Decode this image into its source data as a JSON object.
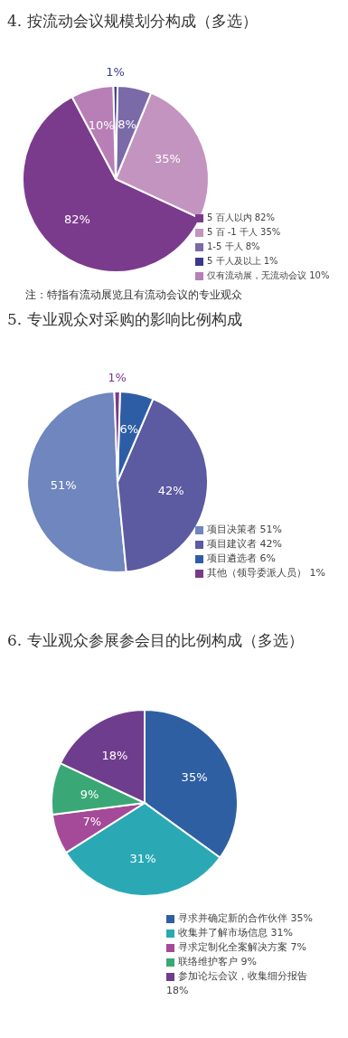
{
  "chart_data": [
    {
      "type": "pie",
      "title": "4. 按流动会议规模划分构成（多选）",
      "categories": [
        "5 百人以内 82%",
        "5 百 -1 千人 35%",
        "1-5 千人 8%",
        "5 千人及以上 1%",
        "仅有流动展，无流动会议 10%"
      ],
      "values": [
        82,
        35,
        8,
        1,
        10
      ],
      "value_labels": [
        "82%",
        "35%",
        "8%",
        "1%",
        "10%"
      ],
      "colors": [
        "#7b3b8c",
        "#c394c0",
        "#7a6aa8",
        "#3a3a8a",
        "#b77fb5"
      ],
      "legend": "bottom right",
      "annotations": [
        "注：特指有流动展览且有流动会议的专业观众"
      ]
    },
    {
      "type": "pie",
      "title": "5. 专业观众对采购的影响比例构成",
      "categories": [
        "项目决策者 51%",
        "项目建议者 42%",
        "项目遴选者 6%",
        "其他（领导委派人员） 1%"
      ],
      "values": [
        51,
        42,
        6,
        1
      ],
      "value_labels": [
        "51%",
        "42%",
        "6%",
        "1%"
      ],
      "colors": [
        "#6f86bf",
        "#5c5aa0",
        "#2d5ea5",
        "#7a3a8a"
      ],
      "legend": "bottom right"
    },
    {
      "type": "pie",
      "title": "6. 专业观众参展参会目的比例构成（多选）",
      "categories": [
        "寻求并确定新的合作伙伴 35%",
        "收集并了解市场信息 31%",
        "寻求定制化全案解决方案 7%",
        "联络维护客户 9%",
        "参加论坛会议，收集细分报告 18%"
      ],
      "values": [
        35,
        31,
        7,
        9,
        18
      ],
      "value_labels": [
        "35%",
        "31%",
        "7%",
        "9%",
        "18%"
      ],
      "colors": [
        "#2f5fa3",
        "#2aa9b5",
        "#a54a98",
        "#3aa876",
        "#6f3d8e"
      ],
      "legend": "bottom right"
    }
  ]
}
